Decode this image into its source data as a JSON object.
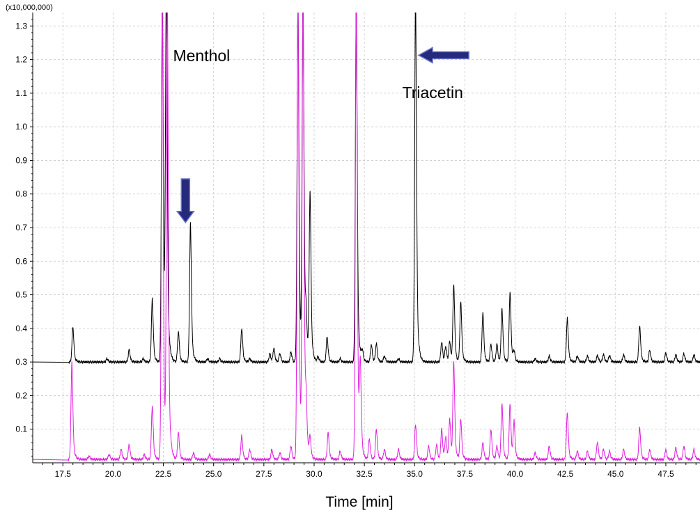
{
  "chart_data": {
    "type": "line",
    "title": "",
    "xlabel": "Time [min]",
    "ylabel": "",
    "y_multiplier_label": "(x10,000,000)",
    "xlim": [
      16.0,
      49.2
    ],
    "ylim": [
      0.0,
      1.34
    ],
    "grid": true,
    "x_ticks": [
      17.5,
      20.0,
      22.5,
      25.0,
      27.5,
      30.0,
      32.5,
      35.0,
      37.5,
      40.0,
      42.5,
      45.0,
      47.5
    ],
    "x_tick_labels": [
      "17.5",
      "20.0",
      "22.5",
      "25.0",
      "27.5",
      "30.0",
      "32.5",
      "35.0",
      "37.5",
      "40.0",
      "42.5",
      "45.0",
      "47.5"
    ],
    "y_ticks": [
      0.1,
      0.2,
      0.3,
      0.4,
      0.5,
      0.6,
      0.7,
      0.8,
      0.9,
      1.0,
      1.1,
      1.2,
      1.3
    ],
    "y_tick_labels": [
      "0.1",
      "0.2",
      "0.3",
      "0.4",
      "0.5",
      "0.6",
      "0.7",
      "0.8",
      "0.9",
      "1.0",
      "1.1",
      "1.2",
      "1.3"
    ],
    "series": [
      {
        "color": "#000000",
        "baseline": 0.3,
        "peaks": [
          {
            "x": 18.0,
            "y": 0.405
          },
          {
            "x": 19.7,
            "y": 0.31
          },
          {
            "x": 20.8,
            "y": 0.337
          },
          {
            "x": 21.5,
            "y": 0.31
          },
          {
            "x": 21.95,
            "y": 0.488
          },
          {
            "x": 22.45,
            "y": 1.4
          },
          {
            "x": 22.65,
            "y": 1.4
          },
          {
            "x": 23.25,
            "y": 0.39
          },
          {
            "x": 23.85,
            "y": 0.714
          },
          {
            "x": 24.7,
            "y": 0.31
          },
          {
            "x": 25.3,
            "y": 0.31
          },
          {
            "x": 26.4,
            "y": 0.4
          },
          {
            "x": 26.8,
            "y": 0.31
          },
          {
            "x": 27.8,
            "y": 0.325
          },
          {
            "x": 28.0,
            "y": 0.34
          },
          {
            "x": 28.3,
            "y": 0.325
          },
          {
            "x": 28.85,
            "y": 0.33
          },
          {
            "x": 29.2,
            "y": 1.4
          },
          {
            "x": 29.45,
            "y": 1.4
          },
          {
            "x": 29.6,
            "y": 0.413
          },
          {
            "x": 29.8,
            "y": 0.8
          },
          {
            "x": 30.2,
            "y": 0.315
          },
          {
            "x": 30.65,
            "y": 0.375
          },
          {
            "x": 31.3,
            "y": 0.31
          },
          {
            "x": 32.1,
            "y": 1.4
          },
          {
            "x": 32.4,
            "y": 0.33
          },
          {
            "x": 32.85,
            "y": 0.352
          },
          {
            "x": 33.1,
            "y": 0.354
          },
          {
            "x": 33.5,
            "y": 0.318
          },
          {
            "x": 34.2,
            "y": 0.31
          },
          {
            "x": 35.05,
            "y": 1.4
          },
          {
            "x": 36.35,
            "y": 0.36
          },
          {
            "x": 36.55,
            "y": 0.345
          },
          {
            "x": 36.75,
            "y": 0.36
          },
          {
            "x": 36.95,
            "y": 0.527
          },
          {
            "x": 37.3,
            "y": 0.478
          },
          {
            "x": 38.4,
            "y": 0.446
          },
          {
            "x": 38.8,
            "y": 0.353
          },
          {
            "x": 39.1,
            "y": 0.353
          },
          {
            "x": 39.35,
            "y": 0.458
          },
          {
            "x": 39.75,
            "y": 0.508
          },
          {
            "x": 39.95,
            "y": 0.33
          },
          {
            "x": 41.0,
            "y": 0.31
          },
          {
            "x": 41.7,
            "y": 0.318
          },
          {
            "x": 42.6,
            "y": 0.43
          },
          {
            "x": 43.1,
            "y": 0.318
          },
          {
            "x": 43.6,
            "y": 0.318
          },
          {
            "x": 44.1,
            "y": 0.32
          },
          {
            "x": 44.4,
            "y": 0.322
          },
          {
            "x": 44.7,
            "y": 0.32
          },
          {
            "x": 45.4,
            "y": 0.322
          },
          {
            "x": 46.2,
            "y": 0.408
          },
          {
            "x": 46.7,
            "y": 0.335
          },
          {
            "x": 47.5,
            "y": 0.328
          },
          {
            "x": 48.0,
            "y": 0.322
          },
          {
            "x": 48.4,
            "y": 0.325
          },
          {
            "x": 48.9,
            "y": 0.322
          }
        ]
      },
      {
        "color": "#e020e0",
        "baseline": 0.01,
        "peaks": [
          {
            "x": 17.95,
            "y": 0.3
          },
          {
            "x": 18.8,
            "y": 0.02
          },
          {
            "x": 19.8,
            "y": 0.025
          },
          {
            "x": 20.4,
            "y": 0.04
          },
          {
            "x": 20.8,
            "y": 0.055
          },
          {
            "x": 21.55,
            "y": 0.025
          },
          {
            "x": 21.95,
            "y": 0.17
          },
          {
            "x": 22.45,
            "y": 1.4
          },
          {
            "x": 22.7,
            "y": 1.4
          },
          {
            "x": 23.25,
            "y": 0.09
          },
          {
            "x": 24.0,
            "y": 0.03
          },
          {
            "x": 24.8,
            "y": 0.025
          },
          {
            "x": 26.4,
            "y": 0.08
          },
          {
            "x": 26.8,
            "y": 0.04
          },
          {
            "x": 27.9,
            "y": 0.04
          },
          {
            "x": 28.3,
            "y": 0.03
          },
          {
            "x": 28.85,
            "y": 0.05
          },
          {
            "x": 29.2,
            "y": 1.4
          },
          {
            "x": 29.45,
            "y": 1.4
          },
          {
            "x": 29.6,
            "y": 0.14
          },
          {
            "x": 29.8,
            "y": 0.07
          },
          {
            "x": 30.7,
            "y": 0.09
          },
          {
            "x": 31.3,
            "y": 0.035
          },
          {
            "x": 32.1,
            "y": 1.4
          },
          {
            "x": 32.3,
            "y": 0.27
          },
          {
            "x": 32.75,
            "y": 0.07
          },
          {
            "x": 33.1,
            "y": 0.1
          },
          {
            "x": 33.5,
            "y": 0.04
          },
          {
            "x": 34.2,
            "y": 0.04
          },
          {
            "x": 35.05,
            "y": 0.115
          },
          {
            "x": 35.7,
            "y": 0.05
          },
          {
            "x": 36.1,
            "y": 0.055
          },
          {
            "x": 36.35,
            "y": 0.1
          },
          {
            "x": 36.55,
            "y": 0.075
          },
          {
            "x": 36.75,
            "y": 0.13
          },
          {
            "x": 36.95,
            "y": 0.3
          },
          {
            "x": 37.3,
            "y": 0.13
          },
          {
            "x": 38.4,
            "y": 0.06
          },
          {
            "x": 38.8,
            "y": 0.1
          },
          {
            "x": 39.1,
            "y": 0.05
          },
          {
            "x": 39.35,
            "y": 0.178
          },
          {
            "x": 39.75,
            "y": 0.175
          },
          {
            "x": 39.95,
            "y": 0.12
          },
          {
            "x": 41.0,
            "y": 0.03
          },
          {
            "x": 41.7,
            "y": 0.05
          },
          {
            "x": 42.6,
            "y": 0.15
          },
          {
            "x": 43.1,
            "y": 0.035
          },
          {
            "x": 43.6,
            "y": 0.035
          },
          {
            "x": 44.1,
            "y": 0.062
          },
          {
            "x": 44.4,
            "y": 0.04
          },
          {
            "x": 44.7,
            "y": 0.035
          },
          {
            "x": 45.4,
            "y": 0.04
          },
          {
            "x": 46.2,
            "y": 0.105
          },
          {
            "x": 46.7,
            "y": 0.04
          },
          {
            "x": 47.5,
            "y": 0.04
          },
          {
            "x": 48.0,
            "y": 0.045
          },
          {
            "x": 48.4,
            "y": 0.05
          },
          {
            "x": 48.9,
            "y": 0.04
          }
        ]
      }
    ],
    "annotations": [
      {
        "text": "Menthol",
        "x": 24.4,
        "y": 1.195
      },
      {
        "text": "Triacetin",
        "x": 35.9,
        "y": 1.085
      }
    ],
    "arrows": [
      {
        "direction": "down",
        "x": 23.6,
        "y_start": 0.845,
        "y_end": 0.715,
        "color": "#252a7c"
      },
      {
        "direction": "left",
        "x_start": 37.7,
        "x_end": 35.2,
        "y": 1.213,
        "color": "#252a7c"
      }
    ]
  }
}
